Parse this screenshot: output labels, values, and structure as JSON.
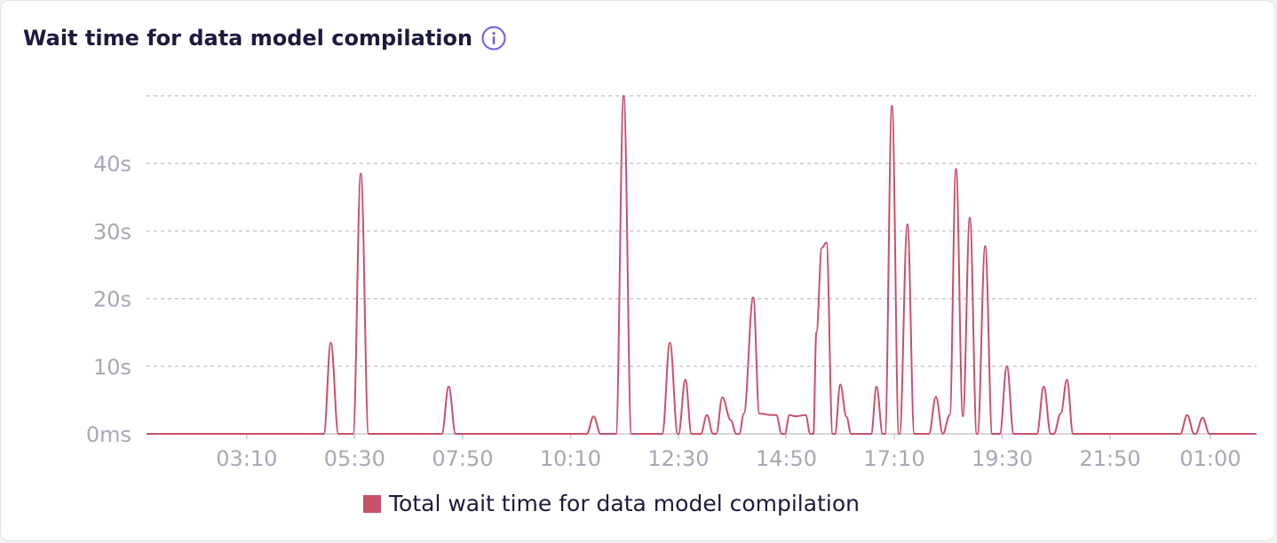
{
  "header": {
    "title": "Wait time for data model compilation",
    "info_icon": "info-icon"
  },
  "colors": {
    "series": "#c9506a",
    "grid": "#c8c8d2",
    "tick": "#a7a7b8",
    "title": "#1c1a3d",
    "info": "#6b5ce0"
  },
  "chart_data": {
    "type": "line",
    "title": "Wait time for data model compilation",
    "xlabel": "",
    "ylabel": "",
    "y_unit": "seconds",
    "ylim": [
      0,
      50
    ],
    "y_ticks": [
      0,
      10,
      20,
      30,
      40
    ],
    "y_tick_labels": [
      "0ms",
      "10s",
      "20s",
      "30s",
      "40s"
    ],
    "x_range_minutes": [
      60,
      1500
    ],
    "x_ticks_minutes": [
      190,
      330,
      470,
      610,
      750,
      890,
      1030,
      1170,
      1310,
      1440
    ],
    "x_tick_labels": [
      "03:10",
      "05:30",
      "07:50",
      "10:10",
      "12:30",
      "14:50",
      "17:10",
      "19:30",
      "21:50",
      "01:00"
    ],
    "grid": true,
    "legend_position": "bottom",
    "series": [
      {
        "name": "Total wait time for data model compilation",
        "points": [
          [
            60,
            0
          ],
          [
            290,
            0
          ],
          [
            299,
            13.5
          ],
          [
            309,
            0
          ],
          [
            328,
            0
          ],
          [
            338,
            38.5
          ],
          [
            348,
            0
          ],
          [
            443,
            0
          ],
          [
            452,
            7
          ],
          [
            461,
            0
          ],
          [
            631,
            0
          ],
          [
            640,
            2.6
          ],
          [
            649,
            0
          ],
          [
            669,
            0
          ],
          [
            679,
            50
          ],
          [
            689,
            0
          ],
          [
            729,
            0
          ],
          [
            739,
            13.5
          ],
          [
            749,
            0
          ],
          [
            750,
            0
          ],
          [
            759,
            8
          ],
          [
            767,
            0
          ],
          [
            779,
            0
          ],
          [
            787,
            2.8
          ],
          [
            795,
            0
          ],
          [
            799,
            0
          ],
          [
            807,
            5.4
          ],
          [
            818,
            2
          ],
          [
            825,
            0
          ],
          [
            829,
            0
          ],
          [
            835,
            3
          ],
          [
            847,
            20.2
          ],
          [
            855,
            3
          ],
          [
            870,
            2.8
          ],
          [
            877,
            2.8
          ],
          [
            884,
            0
          ],
          [
            888,
            0
          ],
          [
            894,
            2.8
          ],
          [
            902,
            2.6
          ],
          [
            915,
            2.8
          ],
          [
            921,
            0
          ],
          [
            925,
            0
          ],
          [
            929,
            15
          ],
          [
            936,
            27.5
          ],
          [
            942,
            28.3
          ],
          [
            950,
            0
          ],
          [
            953,
            0
          ],
          [
            960,
            7.3
          ],
          [
            968,
            2.5
          ],
          [
            974,
            0
          ],
          [
            1000,
            0
          ],
          [
            1007,
            7
          ],
          [
            1015,
            0
          ],
          [
            1018,
            0
          ],
          [
            1027,
            48.5
          ],
          [
            1036,
            0
          ],
          [
            1037,
            0
          ],
          [
            1047,
            31
          ],
          [
            1056,
            0
          ],
          [
            1075,
            0
          ],
          [
            1084,
            5.5
          ],
          [
            1093,
            0
          ],
          [
            1102,
            2.8
          ],
          [
            1110,
            39.2
          ],
          [
            1119,
            2.6
          ],
          [
            1128,
            32
          ],
          [
            1137,
            0
          ],
          [
            1138,
            0
          ],
          [
            1148,
            27.8
          ],
          [
            1157,
            0
          ],
          [
            1167,
            0
          ],
          [
            1176,
            10
          ],
          [
            1185,
            0
          ],
          [
            1215,
            0
          ],
          [
            1224,
            7
          ],
          [
            1233,
            0
          ],
          [
            1237,
            0
          ],
          [
            1246,
            3
          ],
          [
            1254,
            8
          ],
          [
            1262,
            0
          ],
          [
            1401,
            0
          ],
          [
            1410,
            2.8
          ],
          [
            1419,
            0
          ],
          [
            1421,
            0
          ],
          [
            1430,
            2.4
          ],
          [
            1439,
            0
          ],
          [
            1500,
            0
          ]
        ]
      }
    ]
  }
}
